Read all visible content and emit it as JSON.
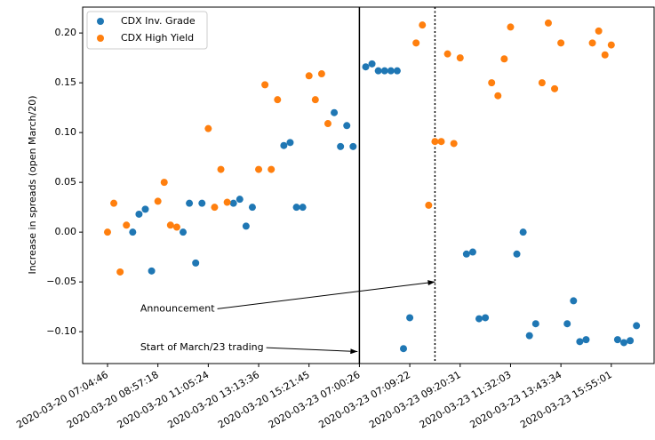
{
  "chart_data": {
    "type": "scatter",
    "ylabel": "Increase in spreads (open March/20)",
    "legend": "upper left",
    "xlim": [
      -3.95,
      86.8
    ],
    "ylim": [
      -0.132,
      0.226
    ],
    "xticks": [
      {
        "value": 0,
        "label": "2020-03-20 07:04:46"
      },
      {
        "value": 8,
        "label": "2020-03-20 08:57:18"
      },
      {
        "value": 16,
        "label": "2020-03-20 11:05:24"
      },
      {
        "value": 24,
        "label": "2020-03-20 13:13:36"
      },
      {
        "value": 32,
        "label": "2020-03-20 15:21:45"
      },
      {
        "value": 40,
        "label": "2020-03-23 07:00:26"
      },
      {
        "value": 48,
        "label": "2020-03-23 07:09:22"
      },
      {
        "value": 56,
        "label": "2020-03-23 09:20:31"
      },
      {
        "value": 64,
        "label": "2020-03-23 11:32:03"
      },
      {
        "value": 72,
        "label": "2020-03-23 13:43:34"
      },
      {
        "value": 80,
        "label": "2020-03-23 15:55:01"
      }
    ],
    "yticks": [
      {
        "value": -0.1,
        "label": "−0.10"
      },
      {
        "value": -0.05,
        "label": "−0.05"
      },
      {
        "value": 0,
        "label": "0.00"
      },
      {
        "value": 0.05,
        "label": "0.05"
      },
      {
        "value": 0.1,
        "label": "0.10"
      },
      {
        "value": 0.15,
        "label": "0.15"
      },
      {
        "value": 0.2,
        "label": "0.20"
      }
    ],
    "series": [
      {
        "name": "CDX Inv. Grade",
        "color": "#1f77b4",
        "x": [
          4,
          5,
          6,
          7,
          12,
          13,
          14,
          15,
          20,
          21,
          22,
          23,
          28,
          29,
          30,
          31,
          36,
          37,
          38,
          39,
          41,
          42,
          43,
          44,
          45,
          46,
          47,
          48,
          57,
          58,
          59,
          60,
          65,
          66,
          67,
          68,
          73,
          74,
          75,
          76,
          81,
          82,
          83,
          84
        ],
        "values": [
          0.0,
          0.018,
          0.023,
          -0.039,
          0.0,
          0.029,
          -0.031,
          0.029,
          0.029,
          0.033,
          0.006,
          0.025,
          0.087,
          0.09,
          0.025,
          0.025,
          0.12,
          0.086,
          0.107,
          0.086,
          0.166,
          0.169,
          0.162,
          0.162,
          0.162,
          0.162,
          -0.117,
          -0.086,
          -0.022,
          -0.02,
          -0.087,
          -0.086,
          -0.022,
          0.0,
          -0.104,
          -0.092,
          -0.092,
          -0.069,
          -0.11,
          -0.108,
          -0.108,
          -0.111,
          -0.109,
          -0.094
        ]
      },
      {
        "name": "CDX High Yield",
        "color": "#ff7f0e",
        "x": [
          0,
          1,
          2,
          3,
          8,
          9,
          10,
          11,
          16,
          17,
          18,
          19,
          24,
          25,
          26,
          27,
          32,
          33,
          34,
          35,
          49,
          50,
          51,
          52,
          53,
          54,
          55,
          56,
          61,
          62,
          63,
          64,
          69,
          70,
          71,
          72,
          77,
          78,
          79,
          80
        ],
        "values": [
          0.0,
          0.029,
          -0.04,
          0.007,
          0.031,
          0.05,
          0.007,
          0.005,
          0.104,
          0.025,
          0.063,
          0.03,
          0.063,
          0.148,
          0.063,
          0.133,
          0.157,
          0.133,
          0.159,
          0.109,
          0.19,
          0.208,
          0.027,
          0.091,
          0.091,
          0.179,
          0.089,
          0.175,
          0.15,
          0.137,
          0.174,
          0.206,
          0.15,
          0.21,
          0.144,
          0.19,
          0.19,
          0.202,
          0.178,
          0.188
        ]
      }
    ],
    "vlines": [
      {
        "x": 40,
        "style": "solid"
      },
      {
        "x": 52,
        "style": "dotted"
      }
    ],
    "annotations": [
      {
        "text": "Announcement",
        "xy": [
          52,
          -0.05
        ],
        "xytext": [
          5.2,
          -0.077
        ]
      },
      {
        "text": "Start of March/23 trading",
        "xy": [
          39.7,
          -0.12
        ],
        "xytext": [
          5.2,
          -0.116
        ]
      }
    ]
  }
}
